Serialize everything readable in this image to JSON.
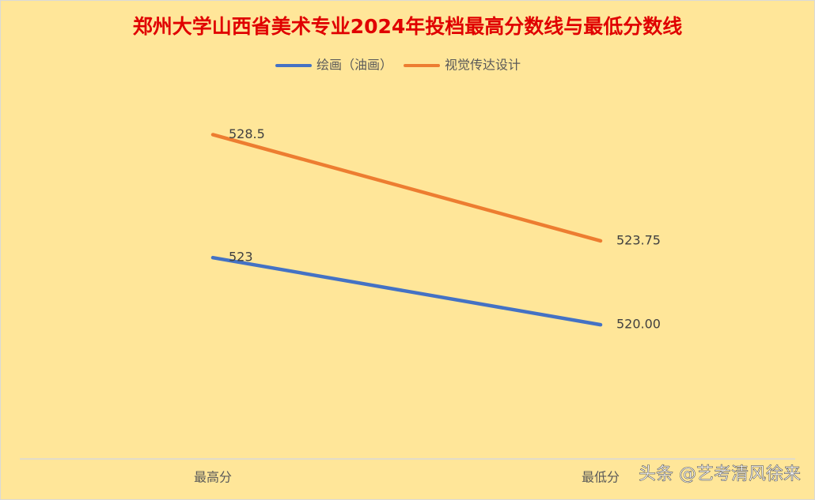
{
  "chart_data": {
    "type": "line",
    "title": "郑州大学山西省美术专业2024年投档最高分数线与最低分数线",
    "categories": [
      "最高分",
      "最低分"
    ],
    "series": [
      {
        "name": "绘画（油画）",
        "color": "#4472c4",
        "values": [
          523,
          520
        ],
        "value_labels": [
          "523",
          "520.00"
        ]
      },
      {
        "name": "视觉传达设计",
        "color": "#ed7d31",
        "values": [
          528.5,
          523.75
        ],
        "value_labels": [
          "528.5",
          "523.75"
        ]
      }
    ],
    "ylim": [
      514,
      530
    ],
    "grid": false,
    "legend": "top",
    "watermark": "头条 @艺考清风徐来"
  }
}
